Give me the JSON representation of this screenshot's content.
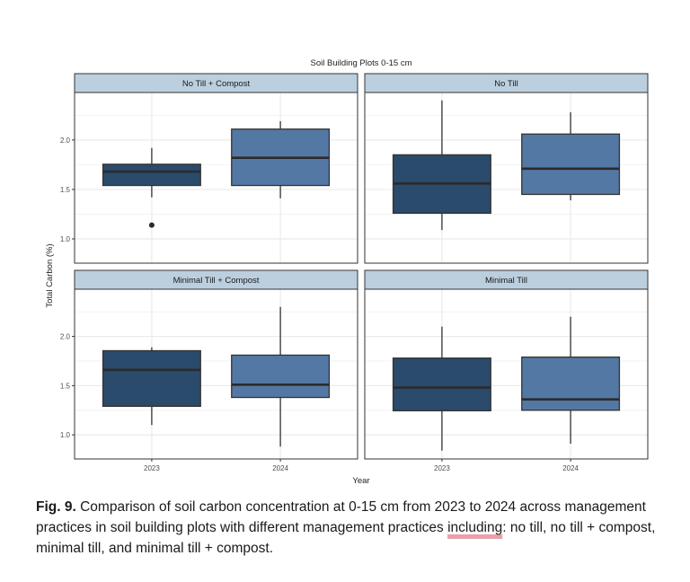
{
  "chart_data": {
    "type": "boxplot",
    "title": "Soil Building Plots 0-15 cm",
    "xlabel": "Year",
    "ylabel": "Total Carbon (%)",
    "ylim": [
      0.755,
      2.48
    ],
    "yticks": [
      1.0,
      1.5,
      2.0
    ],
    "ytick_labels": [
      "1.0",
      "1.5",
      "2.0"
    ],
    "categories": [
      "2023",
      "2024"
    ],
    "grid": true,
    "legend": "none",
    "colors": {
      "2023": "#2a4b6b",
      "2024": "#5378a3"
    },
    "strip_color": "#bccfdf",
    "facets": [
      {
        "name": "No Till + Compost",
        "boxes": [
          {
            "x": "2023",
            "whisker_low": 1.42,
            "q1": 1.54,
            "median": 1.68,
            "q3": 1.755,
            "whisker_high": 1.92,
            "outliers": [
              1.14
            ]
          },
          {
            "x": "2024",
            "whisker_low": 1.41,
            "q1": 1.54,
            "median": 1.82,
            "q3": 2.11,
            "whisker_high": 2.19,
            "outliers": []
          }
        ]
      },
      {
        "name": "No Till",
        "boxes": [
          {
            "x": "2023",
            "whisker_low": 1.09,
            "q1": 1.26,
            "median": 1.56,
            "q3": 1.85,
            "whisker_high": 2.4,
            "outliers": []
          },
          {
            "x": "2024",
            "whisker_low": 1.39,
            "q1": 1.45,
            "median": 1.71,
            "q3": 2.06,
            "whisker_high": 2.28,
            "outliers": []
          }
        ]
      },
      {
        "name": "Minimal Till  + Compost",
        "boxes": [
          {
            "x": "2023",
            "whisker_low": 1.1,
            "q1": 1.29,
            "median": 1.66,
            "q3": 1.855,
            "whisker_high": 1.89,
            "outliers": []
          },
          {
            "x": "2024",
            "whisker_low": 0.88,
            "q1": 1.38,
            "median": 1.51,
            "q3": 1.81,
            "whisker_high": 2.3,
            "outliers": []
          }
        ]
      },
      {
        "name": "Minimal Till",
        "boxes": [
          {
            "x": "2023",
            "whisker_low": 0.84,
            "q1": 1.245,
            "median": 1.48,
            "q3": 1.78,
            "whisker_high": 2.1,
            "outliers": []
          },
          {
            "x": "2024",
            "whisker_low": 0.91,
            "q1": 1.25,
            "median": 1.36,
            "q3": 1.79,
            "whisker_high": 2.2,
            "outliers": []
          }
        ]
      }
    ]
  },
  "caption": {
    "label": "Fig. 9.",
    "text_before": " Comparison of soil carbon concentration at 0-15 cm from 2023 to 2024 across management practices in soil building plots with different management practices ",
    "highlighted": "including",
    "text_after": ": no till, no till + compost, minimal till, and minimal till + compost."
  }
}
